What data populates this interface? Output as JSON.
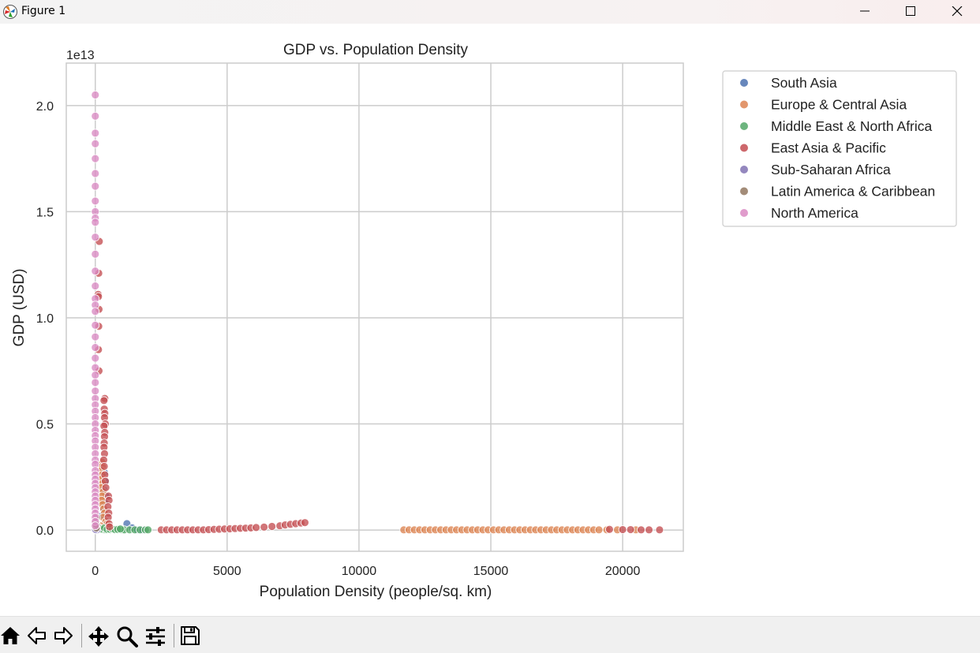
{
  "window": {
    "title": "Figure 1",
    "icons": {
      "app": "matplotlib-logo-icon",
      "minimize": "minimize-icon",
      "maximize": "maximize-icon",
      "close": "close-icon"
    }
  },
  "toolbar": {
    "items": [
      {
        "name": "home-icon"
      },
      {
        "name": "back-arrow-icon"
      },
      {
        "name": "forward-arrow-icon"
      },
      {
        "name": "pan-icon"
      },
      {
        "name": "zoom-icon"
      },
      {
        "name": "configure-subplots-icon"
      },
      {
        "name": "save-icon"
      }
    ]
  },
  "chart_data": {
    "type": "scatter",
    "title": "GDP vs. Population Density",
    "xlabel": "Population Density (people/sq. km)",
    "ylabel": "GDP (USD)",
    "y_offset_label": "1e13",
    "xlim": [
      -1100,
      22300
    ],
    "ylim": [
      -1000000000000.0,
      22000000000000.0
    ],
    "xticks": [
      0,
      5000,
      10000,
      15000,
      20000
    ],
    "xtick_labels": [
      "0",
      "5000",
      "10000",
      "15000",
      "20000"
    ],
    "yticks": [
      0,
      5000000000000.0,
      10000000000000.0,
      15000000000000.0,
      20000000000000.0
    ],
    "ytick_labels": [
      "0.0",
      "0.5",
      "1.0",
      "1.5",
      "2.0"
    ],
    "grid": true,
    "legend_position": "outside-upper-right",
    "series": [
      {
        "name": "South Asia",
        "color": "#4c72b0",
        "points": [
          [
            350,
            2700000000000.0
          ],
          [
            380,
            2300000000000.0
          ],
          [
            320,
            1900000000000.0
          ],
          [
            400,
            1600000000000.0
          ],
          [
            360,
            1300000000000.0
          ],
          [
            300,
            1000000000000.0
          ],
          [
            280,
            700000000000.0
          ],
          [
            420,
            400000000000.0
          ],
          [
            450,
            200000000000.0
          ],
          [
            500,
            100000000000.0
          ],
          [
            1200,
            300000000000.0
          ],
          [
            1400,
            100000000000.0
          ],
          [
            1600,
            10000000000.0
          ],
          [
            1800,
            5000000000.0
          ]
        ]
      },
      {
        "name": "Europe & Central Asia",
        "color": "#dd8452",
        "points": [
          [
            250,
            3200000000000.0
          ],
          [
            270,
            3000000000000.0
          ],
          [
            230,
            2800000000000.0
          ],
          [
            260,
            2600000000000.0
          ],
          [
            240,
            2400000000000.0
          ],
          [
            280,
            2200000000000.0
          ],
          [
            220,
            2000000000000.0
          ],
          [
            300,
            1800000000000.0
          ],
          [
            260,
            1600000000000.0
          ],
          [
            240,
            1400000000000.0
          ],
          [
            280,
            1200000000000.0
          ],
          [
            320,
            1000000000000.0
          ],
          [
            350,
            800000000000.0
          ],
          [
            300,
            600000000000.0
          ],
          [
            400,
            400000000000.0
          ],
          [
            450,
            300000000000.0
          ],
          [
            200,
            200000000000.0
          ],
          [
            150,
            100000000000.0
          ],
          [
            11700,
            10000000000.0
          ],
          [
            11900,
            10000000000.0
          ],
          [
            12100,
            10000000000.0
          ],
          [
            12300,
            10000000000.0
          ],
          [
            12500,
            10000000000.0
          ],
          [
            12700,
            10000000000.0
          ],
          [
            12900,
            10000000000.0
          ],
          [
            13100,
            10000000000.0
          ],
          [
            13300,
            10000000000.0
          ],
          [
            13500,
            10000000000.0
          ],
          [
            13700,
            10000000000.0
          ],
          [
            13900,
            10000000000.0
          ],
          [
            14100,
            10000000000.0
          ],
          [
            14300,
            10000000000.0
          ],
          [
            14500,
            10000000000.0
          ],
          [
            14700,
            10000000000.0
          ],
          [
            14900,
            10000000000.0
          ],
          [
            15100,
            10000000000.0
          ],
          [
            15300,
            10000000000.0
          ],
          [
            15500,
            10000000000.0
          ],
          [
            15700,
            10000000000.0
          ],
          [
            15900,
            10000000000.0
          ],
          [
            16100,
            10000000000.0
          ],
          [
            16300,
            10000000000.0
          ],
          [
            16500,
            10000000000.0
          ],
          [
            16700,
            10000000000.0
          ],
          [
            16900,
            10000000000.0
          ],
          [
            17100,
            10000000000.0
          ],
          [
            17300,
            10000000000.0
          ],
          [
            17500,
            10000000000.0
          ],
          [
            17700,
            10000000000.0
          ],
          [
            17900,
            10000000000.0
          ],
          [
            18100,
            10000000000.0
          ],
          [
            18300,
            10000000000.0
          ],
          [
            18500,
            10000000000.0
          ],
          [
            18700,
            10000000000.0
          ],
          [
            18900,
            10000000000.0
          ],
          [
            19100,
            10000000000.0
          ],
          [
            19400,
            10000000000.0
          ],
          [
            19800,
            10000000000.0
          ],
          [
            20500,
            10000000000.0
          ]
        ]
      },
      {
        "name": "Middle East & North Africa",
        "color": "#55a868",
        "points": [
          [
            300,
            20000000000.0
          ],
          [
            400,
            10000000000.0
          ],
          [
            500,
            10000000000.0
          ],
          [
            600,
            10000000000.0
          ],
          [
            700,
            10000000000.0
          ],
          [
            800,
            10000000000.0
          ],
          [
            900,
            10000000000.0
          ],
          [
            1000,
            10000000000.0
          ],
          [
            1100,
            10000000000.0
          ],
          [
            1300,
            10000000000.0
          ],
          [
            1500,
            10000000000.0
          ],
          [
            1700,
            10000000000.0
          ],
          [
            1900,
            10000000000.0
          ],
          [
            2000,
            10000000000.0
          ],
          [
            200,
            50000000000.0
          ],
          [
            350,
            100000000000.0
          ],
          [
            450,
            30000000000.0
          ],
          [
            550,
            40000000000.0
          ],
          [
            650,
            60000000000.0
          ],
          [
            750,
            20000000000.0
          ],
          [
            850,
            30000000000.0
          ],
          [
            950,
            50000000000.0
          ]
        ]
      },
      {
        "name": "East Asia & Pacific",
        "color": "#c44e52",
        "points": [
          [
            150,
            13600000000000.0
          ],
          [
            130,
            12100000000000.0
          ],
          [
            110,
            11100000000000.0
          ],
          [
            120,
            11000000000000.0
          ],
          [
            140,
            10400000000000.0
          ],
          [
            130,
            9600000000000.0
          ],
          [
            120,
            8500000000000.0
          ],
          [
            140,
            7500000000000.0
          ],
          [
            360,
            6200000000000.0
          ],
          [
            330,
            6100000000000.0
          ],
          [
            340,
            5700000000000.0
          ],
          [
            360,
            5500000000000.0
          ],
          [
            350,
            5300000000000.0
          ],
          [
            380,
            5000000000000.0
          ],
          [
            330,
            4900000000000.0
          ],
          [
            360,
            4600000000000.0
          ],
          [
            350,
            4400000000000.0
          ],
          [
            340,
            4100000000000.0
          ],
          [
            330,
            3900000000000.0
          ],
          [
            350,
            3600000000000.0
          ],
          [
            320,
            3300000000000.0
          ],
          [
            340,
            3000000000000.0
          ],
          [
            360,
            2600000000000.0
          ],
          [
            380,
            2300000000000.0
          ],
          [
            400,
            2000000000000.0
          ],
          [
            500,
            1600000000000.0
          ],
          [
            520,
            1400000000000.0
          ],
          [
            480,
            1100000000000.0
          ],
          [
            510,
            800000000000.0
          ],
          [
            490,
            600000000000.0
          ],
          [
            520,
            300000000000.0
          ],
          [
            540,
            150000000000.0
          ],
          [
            2500,
            10000000000.0
          ],
          [
            2700,
            10000000000.0
          ],
          [
            2900,
            10000000000.0
          ],
          [
            3100,
            10000000000.0
          ],
          [
            3300,
            10000000000.0
          ],
          [
            3500,
            10000000000.0
          ],
          [
            3700,
            10000000000.0
          ],
          [
            3900,
            10000000000.0
          ],
          [
            4100,
            10000000000.0
          ],
          [
            4300,
            20000000000.0
          ],
          [
            4500,
            30000000000.0
          ],
          [
            4700,
            40000000000.0
          ],
          [
            4900,
            50000000000.0
          ],
          [
            5100,
            60000000000.0
          ],
          [
            5300,
            70000000000.0
          ],
          [
            5500,
            80000000000.0
          ],
          [
            5700,
            90000000000.0
          ],
          [
            5900,
            100000000000.0
          ],
          [
            6100,
            120000000000.0
          ],
          [
            6400,
            140000000000.0
          ],
          [
            6700,
            170000000000.0
          ],
          [
            7000,
            200000000000.0
          ],
          [
            7200,
            240000000000.0
          ],
          [
            7400,
            270000000000.0
          ],
          [
            7600,
            300000000000.0
          ],
          [
            7800,
            330000000000.0
          ],
          [
            7950,
            350000000000.0
          ],
          [
            19500,
            30000000000.0
          ],
          [
            20000,
            20000000000.0
          ],
          [
            20300,
            20000000000.0
          ],
          [
            20700,
            10000000000.0
          ],
          [
            21000,
            10000000000.0
          ],
          [
            21400,
            10000000000.0
          ]
        ]
      },
      {
        "name": "Sub-Saharan Africa",
        "color": "#8172b3",
        "points": [
          [
            0,
            10000000000.0
          ],
          [
            20,
            20000000000.0
          ],
          [
            40,
            5000000000.0
          ],
          [
            60,
            10000000000.0
          ],
          [
            10,
            30000000000.0
          ]
        ]
      },
      {
        "name": "Latin America & Caribbean",
        "color": "#937860",
        "points": [
          [
            20,
            500000000000.0
          ],
          [
            30,
            300000000000.0
          ],
          [
            15,
            200000000000.0
          ],
          [
            25,
            400000000000.0
          ],
          [
            40,
            100000000000.0
          ],
          [
            50,
            600000000000.0
          ],
          [
            35,
            250000000000.0
          ]
        ]
      },
      {
        "name": "North America",
        "color": "#da8bc3",
        "points": [
          [
            0,
            20500000000000.0
          ],
          [
            0,
            19500000000000.0
          ],
          [
            0,
            18700000000000.0
          ],
          [
            0,
            18200000000000.0
          ],
          [
            0,
            17500000000000.0
          ],
          [
            0,
            16800000000000.0
          ],
          [
            0,
            16200000000000.0
          ],
          [
            0,
            15500000000000.0
          ],
          [
            0,
            15000000000000.0
          ],
          [
            0,
            14700000000000.0
          ],
          [
            0,
            14500000000000.0
          ],
          [
            0,
            13800000000000.0
          ],
          [
            0,
            13000000000000.0
          ],
          [
            0,
            12200000000000.0
          ],
          [
            0,
            11500000000000.0
          ],
          [
            0,
            10900000000000.0
          ],
          [
            0,
            10600000000000.0
          ],
          [
            0,
            10300000000000.0
          ],
          [
            0,
            9650000000000.0
          ],
          [
            0,
            9100000000000.0
          ],
          [
            0,
            8600000000000.0
          ],
          [
            0,
            8100000000000.0
          ],
          [
            0,
            7650000000000.0
          ],
          [
            0,
            7300000000000.0
          ],
          [
            0,
            6950000000000.0
          ],
          [
            0,
            6550000000000.0
          ],
          [
            0,
            6200000000000.0
          ],
          [
            0,
            5900000000000.0
          ],
          [
            0,
            5600000000000.0
          ],
          [
            0,
            5300000000000.0
          ],
          [
            0,
            5000000000000.0
          ],
          [
            0,
            4700000000000.0
          ],
          [
            0,
            4450000000000.0
          ],
          [
            0,
            4200000000000.0
          ],
          [
            0,
            3900000000000.0
          ],
          [
            0,
            3600000000000.0
          ],
          [
            0,
            3300000000000.0
          ],
          [
            0,
            3100000000000.0
          ],
          [
            0,
            2800000000000.0
          ],
          [
            0,
            2600000000000.0
          ],
          [
            0,
            2400000000000.0
          ],
          [
            0,
            2200000000000.0
          ],
          [
            0,
            2000000000000.0
          ],
          [
            0,
            1800000000000.0
          ],
          [
            0,
            1600000000000.0
          ],
          [
            0,
            1400000000000.0
          ],
          [
            0,
            1200000000000.0
          ],
          [
            0,
            1000000000000.0
          ],
          [
            0,
            800000000000.0
          ],
          [
            0,
            600000000000.0
          ],
          [
            0,
            400000000000.0
          ],
          [
            0,
            200000000000.0
          ]
        ]
      }
    ]
  }
}
